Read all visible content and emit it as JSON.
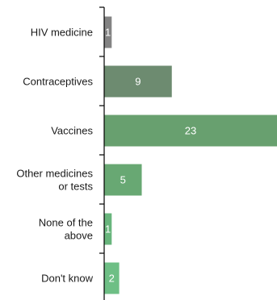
{
  "chart_data": {
    "type": "bar",
    "orientation": "horizontal",
    "title": "",
    "xlabel": "",
    "ylabel": "",
    "categories": [
      [
        "HIV medicine"
      ],
      [
        "Contraceptives"
      ],
      [
        "Vaccines"
      ],
      [
        "Other medicines",
        "or tests"
      ],
      [
        "None of the",
        "above"
      ],
      [
        "Don't know"
      ]
    ],
    "values": [
      1,
      9,
      23,
      5,
      1,
      2
    ],
    "colors": [
      "#838383",
      "#6d8b70",
      "#68a06f",
      "#68a873",
      "#68b57c",
      "#6ebf85"
    ],
    "value_labels": true,
    "xlim": [
      0,
      23
    ],
    "grid": false,
    "legend": "none"
  }
}
